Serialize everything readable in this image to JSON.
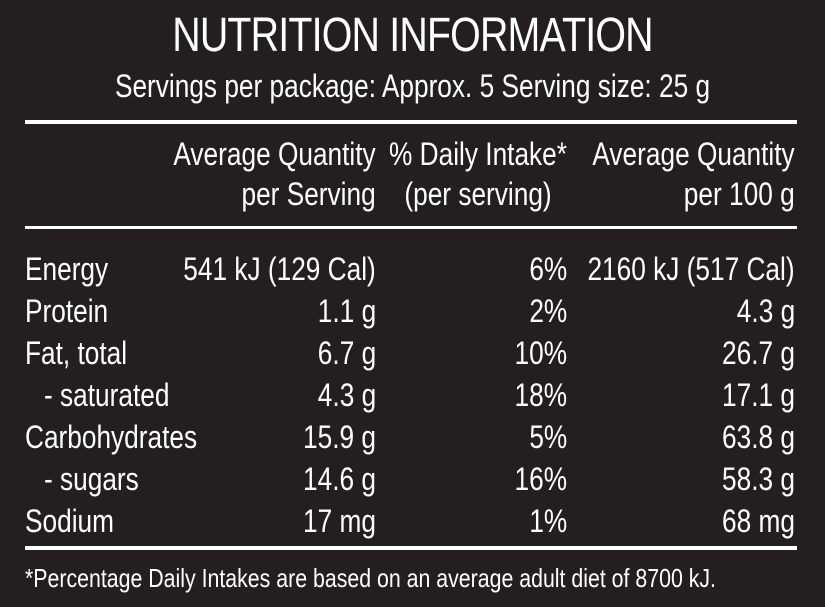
{
  "title": "NUTRITION INFORMATION",
  "servings": "Servings per package: Approx. 5  Serving size: 25 g",
  "headers": {
    "per_serving_line1": "Average Quantity",
    "per_serving_line2": "per Serving",
    "daily_intake_line1": "% Daily Intake*",
    "daily_intake_line2": "(per serving)",
    "per_100g_line1": "Average Quantity",
    "per_100g_line2": "per 100 g"
  },
  "rows": [
    {
      "label": "Energy",
      "per_serving": "541 kJ (129 Cal)",
      "daily_intake": "6%",
      "per_100g": "2160 kJ (517 Cal)"
    },
    {
      "label": "Protein",
      "per_serving": "1.1 g",
      "daily_intake": "2%",
      "per_100g": "4.3 g"
    },
    {
      "label": "Fat, total",
      "per_serving": "6.7 g",
      "daily_intake": "10%",
      "per_100g": "26.7 g"
    },
    {
      "label": "- saturated",
      "per_serving": "4.3 g",
      "daily_intake": "18%",
      "per_100g": "17.1 g"
    },
    {
      "label": "Carbohydrates",
      "per_serving": "15.9 g",
      "daily_intake": "5%",
      "per_100g": "63.8 g"
    },
    {
      "label": "- sugars",
      "per_serving": "14.6 g",
      "daily_intake": "16%",
      "per_100g": "58.3 g"
    },
    {
      "label": "Sodium",
      "per_serving": "17 mg",
      "daily_intake": "1%",
      "per_100g": "68 mg"
    }
  ],
  "footnote": "*Percentage Daily Intakes are based on an average adult diet of 8700 kJ."
}
